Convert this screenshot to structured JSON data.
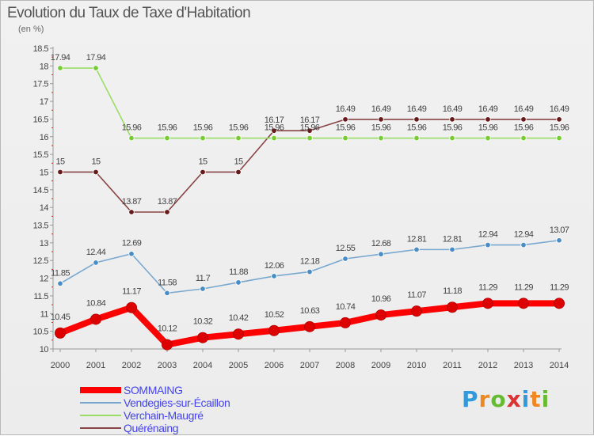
{
  "title": "Evolution du Taux de Taxe d'Habitation",
  "subtitle": "(en %)",
  "brand": "Proxiti",
  "chart_data": {
    "type": "line",
    "title": "Evolution du Taux de Taxe d'Habitation",
    "ylabel": "(en %)",
    "xlabel": "",
    "x": [
      "2000",
      "2001",
      "2002",
      "2003",
      "2004",
      "2005",
      "2006",
      "2007",
      "2008",
      "2009",
      "2010",
      "2011",
      "2012",
      "2013",
      "2014"
    ],
    "ylim": [
      10,
      18.5
    ],
    "yticks": [
      "10",
      "10.5",
      "11",
      "11.5",
      "12",
      "12.5",
      "13",
      "13.5",
      "14",
      "14.5",
      "15",
      "15.5",
      "16",
      "16.5",
      "17",
      "17.5",
      "18",
      "18.5"
    ],
    "grid": false,
    "legend_position": "bottom-left",
    "series": [
      {
        "name": "SOMMAING",
        "color": "#ff0000",
        "marker": "#dd0000",
        "values": [
          10.45,
          10.84,
          11.17,
          10.12,
          10.32,
          10.42,
          10.52,
          10.63,
          10.74,
          10.96,
          11.07,
          11.18,
          11.29,
          11.29,
          11.29
        ],
        "labels": [
          "10.45",
          "10.84",
          "11.17",
          "10.12",
          "10.32",
          "10.42",
          "10.52",
          "10.63",
          "10.74",
          "10.96",
          "11.07",
          "11.18",
          "11.29",
          "11.29",
          "11.29"
        ]
      },
      {
        "name": "Vendegies-sur-Écaillon",
        "color": "#78a8d0",
        "marker": "#4a8cc4",
        "values": [
          11.85,
          12.44,
          12.69,
          11.58,
          11.7,
          11.88,
          12.06,
          12.18,
          12.55,
          12.68,
          12.81,
          12.81,
          12.94,
          12.94,
          13.07
        ],
        "labels": [
          "11.85",
          "12.44",
          "12.69",
          "11.58",
          "11.7",
          "11.88",
          "12.06",
          "12.18",
          "12.55",
          "12.68",
          "12.81",
          "12.81",
          "12.94",
          "12.94",
          "13.07"
        ]
      },
      {
        "name": "Verchain-Maugré",
        "color": "#99dd66",
        "marker": "#77cc33",
        "values": [
          17.94,
          17.94,
          15.96,
          15.96,
          15.96,
          15.96,
          15.96,
          15.96,
          15.96,
          15.96,
          15.96,
          15.96,
          15.96,
          15.96,
          15.96
        ],
        "labels": [
          "17.94",
          "17.94",
          "15.96",
          "15.96",
          "15.96",
          "15.96",
          "15.96",
          "15.96",
          "15.96",
          "15.96",
          "15.96",
          "15.96",
          "15.96",
          "15.96",
          "15.96"
        ]
      },
      {
        "name": "Quérénaing",
        "color": "#884444",
        "marker": "#661a1a",
        "values": [
          15,
          15,
          13.87,
          13.87,
          15,
          15,
          16.17,
          16.17,
          16.49,
          16.49,
          16.49,
          16.49,
          16.49,
          16.49,
          16.49
        ],
        "labels": [
          "15",
          "15",
          "13.87",
          "13.87",
          "15",
          "15",
          "16.17",
          "16.17",
          "16.49",
          "16.49",
          "16.49",
          "16.49",
          "16.49",
          "16.49",
          "16.49"
        ]
      }
    ]
  },
  "legend": [
    {
      "label": "SOMMAING",
      "color": "#ff0000",
      "text_color": "#4444ee"
    },
    {
      "label": "Vendegies-sur-Écaillon",
      "color": "#78a8d0",
      "text_color": "#4444ee"
    },
    {
      "label": "Verchain-Maugré",
      "color": "#99dd66",
      "text_color": "#4444ee"
    },
    {
      "label": "Quérénaing",
      "color": "#884444",
      "text_color": "#4444ee"
    }
  ]
}
